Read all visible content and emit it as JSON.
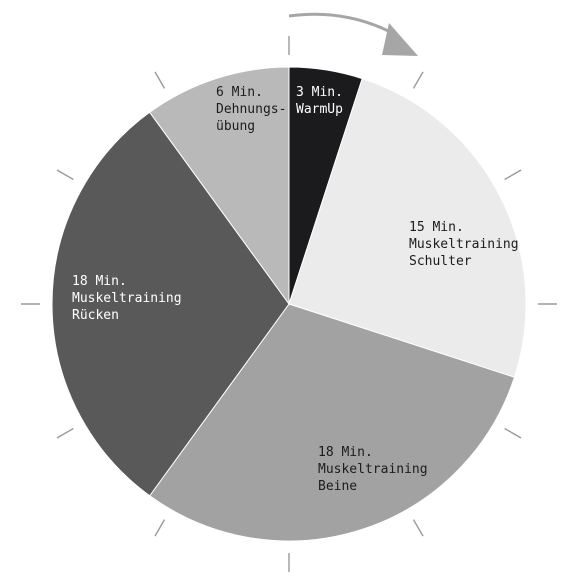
{
  "chart_data": {
    "type": "pie",
    "start_angle_deg": 0,
    "direction": "clockwise",
    "slices": [
      {
        "label_lines": [
          "3 Min.",
          "WarmUp"
        ],
        "value": 3,
        "color": "#1b1b1d",
        "text_color": "#ffffff"
      },
      {
        "label_lines": [
          "15 Min.",
          "Muskeltraining",
          "Schulter"
        ],
        "value": 15,
        "color": "#ebebeb",
        "text_color": "#1c1c1c"
      },
      {
        "label_lines": [
          "18 Min.",
          "Muskeltraining",
          "Beine"
        ],
        "value": 18,
        "color": "#a2a2a2",
        "text_color": "#1c1c1c"
      },
      {
        "label_lines": [
          "18 Min.",
          "Muskeltraining",
          "Rücken"
        ],
        "value": 18,
        "color": "#595959",
        "text_color": "#ffffff"
      },
      {
        "label_lines": [
          "6 Min.",
          "Dehnungs-",
          "übung"
        ],
        "value": 6,
        "color": "#b9b9b9",
        "text_color": "#1c1c1c"
      }
    ],
    "clock_ticks": 12,
    "arrow": {
      "direction": "clockwise",
      "color": "#a6a6a6"
    }
  }
}
